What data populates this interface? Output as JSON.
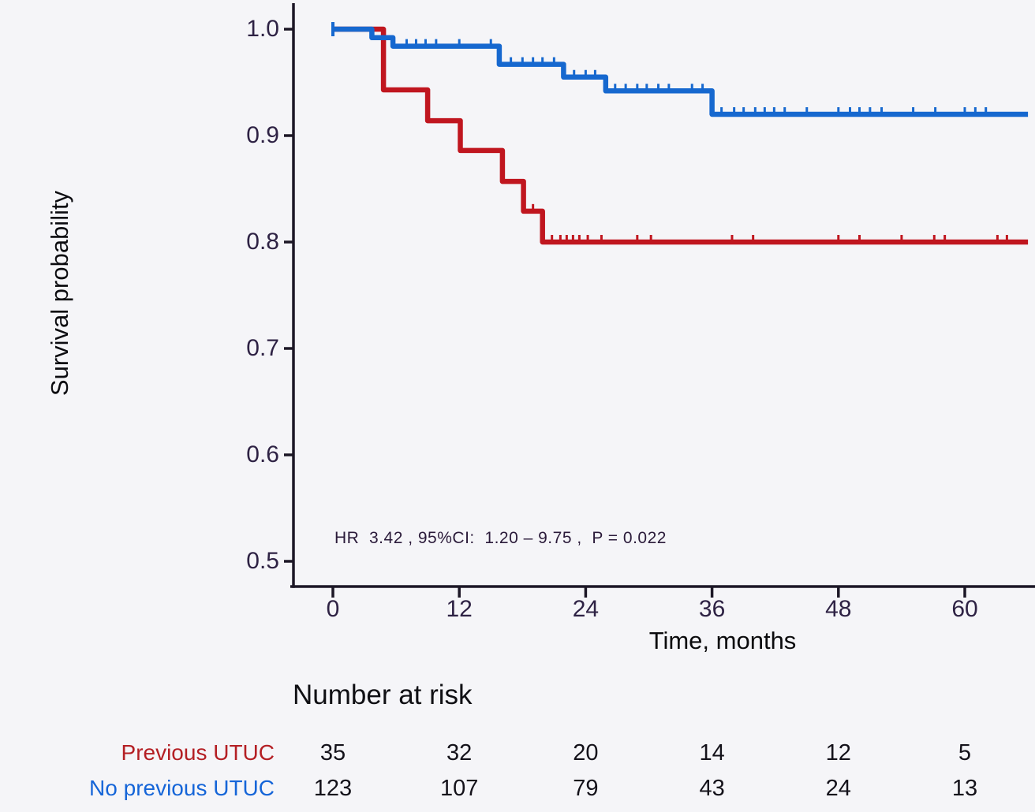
{
  "chart_data": {
    "type": "line",
    "subtype": "kaplan-meier-step",
    "title": "",
    "xlabel": "Time, months",
    "ylabel": "Survival probability",
    "annotation": "HR  3.42 , 95%CI:  1.20 – 9.75 ,  P = 0.022",
    "xticks": [
      0,
      12,
      24,
      36,
      48,
      60
    ],
    "yticks": [
      1.0,
      0.9,
      0.8,
      0.7,
      0.6,
      0.5
    ],
    "ytick_labels": [
      "1.0",
      "0.9",
      "0.8",
      "0.7",
      "0.6",
      "0.5"
    ],
    "xlim": [
      0,
      66
    ],
    "ylim": [
      0.475,
      1.0
    ],
    "grid": false,
    "axis_color": "#1c1726",
    "series": [
      {
        "name": "Previous UTUC",
        "color": "#c0161f",
        "steps": [
          [
            0,
            1.0
          ],
          [
            4.8,
            0.943
          ],
          [
            9.0,
            0.914
          ],
          [
            12.1,
            0.886
          ],
          [
            16.1,
            0.857
          ],
          [
            18.1,
            0.829
          ],
          [
            19.9,
            0.8
          ]
        ],
        "end_time": 66,
        "censor_times": [
          19.0,
          20.8,
          21.6,
          22.2,
          22.8,
          23.4,
          24.2,
          25.5,
          28.9,
          30.2,
          37.9,
          39.9,
          48.0,
          50.0,
          54.0,
          57.1,
          58.1,
          63.1,
          64.0
        ]
      },
      {
        "name": "No previous UTUC",
        "color": "#1668cf",
        "steps": [
          [
            0,
            1.0
          ],
          [
            3.7,
            0.992
          ],
          [
            5.7,
            0.984
          ],
          [
            15.8,
            0.967
          ],
          [
            21.9,
            0.955
          ],
          [
            25.9,
            0.942
          ],
          [
            36.0,
            0.92
          ]
        ],
        "end_time": 66,
        "start_cap": true,
        "censor_times": [
          7.0,
          7.9,
          8.8,
          9.8,
          12.0,
          15.0,
          16.9,
          18.0,
          19.0,
          19.9,
          21.0,
          22.9,
          24.0,
          24.9,
          26.8,
          27.8,
          28.9,
          29.8,
          30.9,
          31.9,
          34.1,
          35.1,
          36.9,
          38.1,
          39.0,
          40.1,
          41.0,
          41.9,
          42.9,
          45.0,
          48.0,
          49.1,
          50.0,
          51.0,
          52.1,
          55.1,
          57.2,
          60.0,
          61.0,
          62.0
        ]
      }
    ],
    "risk_table": {
      "title": "Number at risk",
      "times": [
        0,
        12,
        24,
        36,
        48,
        60
      ],
      "rows": [
        {
          "label": "Previous UTUC",
          "color": "#b41f24",
          "values": [
            "35",
            "32",
            "20",
            "14",
            "12",
            "5"
          ]
        },
        {
          "label": "No previous UTUC",
          "color": "#1565d8",
          "values": [
            "123",
            "107",
            "79",
            "43",
            "24",
            "13"
          ]
        }
      ]
    }
  }
}
